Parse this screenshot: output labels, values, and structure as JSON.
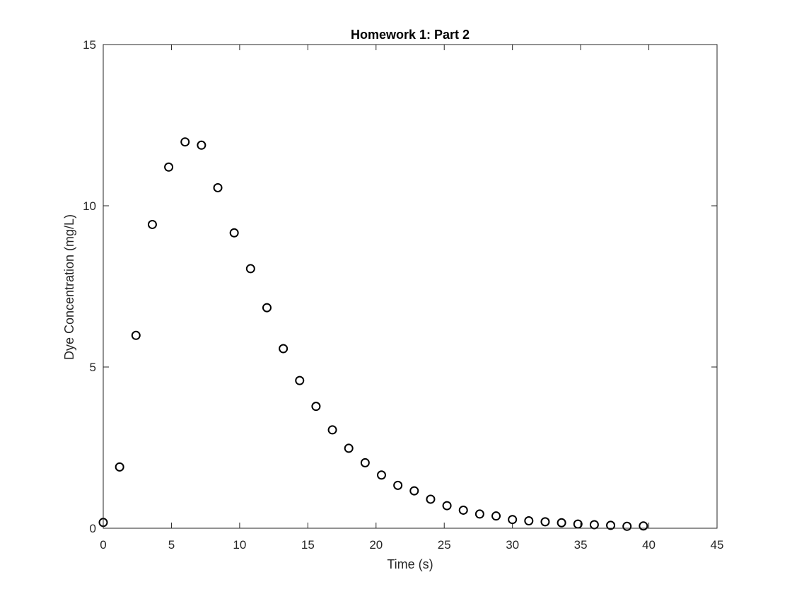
{
  "chart_data": {
    "type": "scatter",
    "title": "Homework 1: Part 2",
    "xlabel": "Time (s)",
    "ylabel": "Dye Concentration (mg/L)",
    "xlim": [
      0,
      45
    ],
    "ylim": [
      0,
      15
    ],
    "xticks": [
      0,
      5,
      10,
      15,
      20,
      25,
      30,
      35,
      40,
      45
    ],
    "yticks": [
      0,
      5,
      10,
      15
    ],
    "grid": false,
    "box": true,
    "marker": "open-circle",
    "marker_color": "#000000",
    "axes_color": "#262626",
    "series": [
      {
        "x": [
          0,
          1.2,
          2.4,
          3.6,
          4.8,
          6.0,
          7.2,
          8.4,
          9.6,
          10.8,
          12.0,
          13.2,
          14.4,
          15.6,
          16.8,
          18.0,
          19.2,
          20.4,
          21.6,
          22.8,
          24.0,
          25.2,
          26.4,
          27.6,
          28.8,
          30.0,
          31.2,
          32.4,
          33.6,
          34.8,
          36.0,
          37.2,
          38.4,
          39.6
        ],
        "y": [
          0.18,
          1.9,
          5.98,
          9.42,
          11.2,
          11.98,
          11.88,
          10.56,
          9.16,
          8.05,
          6.84,
          5.57,
          4.58,
          3.78,
          3.05,
          2.48,
          2.03,
          1.65,
          1.33,
          1.16,
          0.9,
          0.7,
          0.56,
          0.44,
          0.38,
          0.27,
          0.23,
          0.2,
          0.17,
          0.13,
          0.11,
          0.09,
          0.06,
          0.07
        ]
      }
    ]
  }
}
